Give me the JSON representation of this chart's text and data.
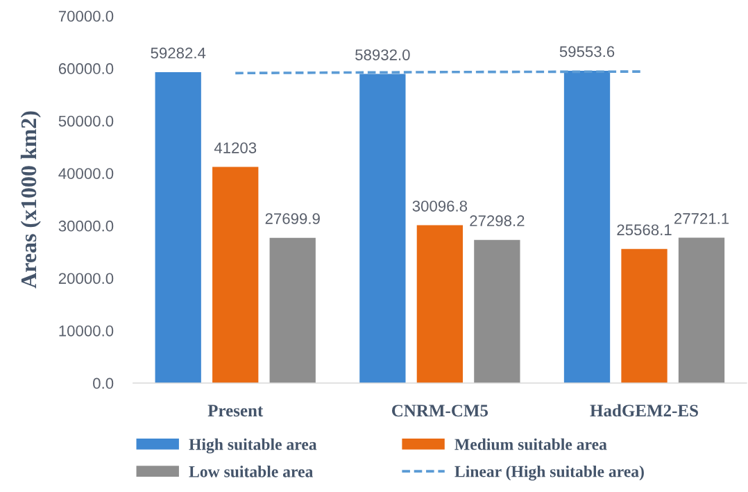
{
  "chart_data": {
    "type": "bar",
    "ylabel": "Areas (x1000 km2)",
    "categories": [
      "Present",
      "CNRM-CM5",
      "HadGEM2-ES"
    ],
    "series": [
      {
        "name": "High suitable area",
        "color": "#3f88d2",
        "values": [
          59282.4,
          58932.0,
          59553.6
        ],
        "value_labels": [
          "59282.4",
          "58932.0",
          "59553.6"
        ]
      },
      {
        "name": "Medium suitable area",
        "color": "#e96a12",
        "values": [
          41203,
          30096.8,
          25568.1
        ],
        "value_labels": [
          "41203",
          "30096.8",
          "25568.1"
        ]
      },
      {
        "name": "Low suitable area",
        "color": "#8e8e8e",
        "values": [
          27699.9,
          27298.2,
          27721.1
        ],
        "value_labels": [
          "27699.9",
          "27298.2",
          "27721.1"
        ]
      },
      {
        "name": "Linear (High suitable area)",
        "type": "line",
        "color": "#5b9bd5",
        "line_style": "dashed",
        "values": [
          59100,
          59300,
          59400
        ]
      }
    ],
    "ylim": [
      0,
      70000
    ],
    "yticks": [
      {
        "value": 0,
        "label": "0.0"
      },
      {
        "value": 10000,
        "label": "10000.0"
      },
      {
        "value": 20000,
        "label": "20000.0"
      },
      {
        "value": 30000,
        "label": "30000.0"
      },
      {
        "value": 40000,
        "label": "40000.0"
      },
      {
        "value": 50000,
        "label": "50000.0"
      },
      {
        "value": 60000,
        "label": "60000.0"
      },
      {
        "value": 70000,
        "label": "70000.0"
      }
    ],
    "legend": "bottom"
  }
}
